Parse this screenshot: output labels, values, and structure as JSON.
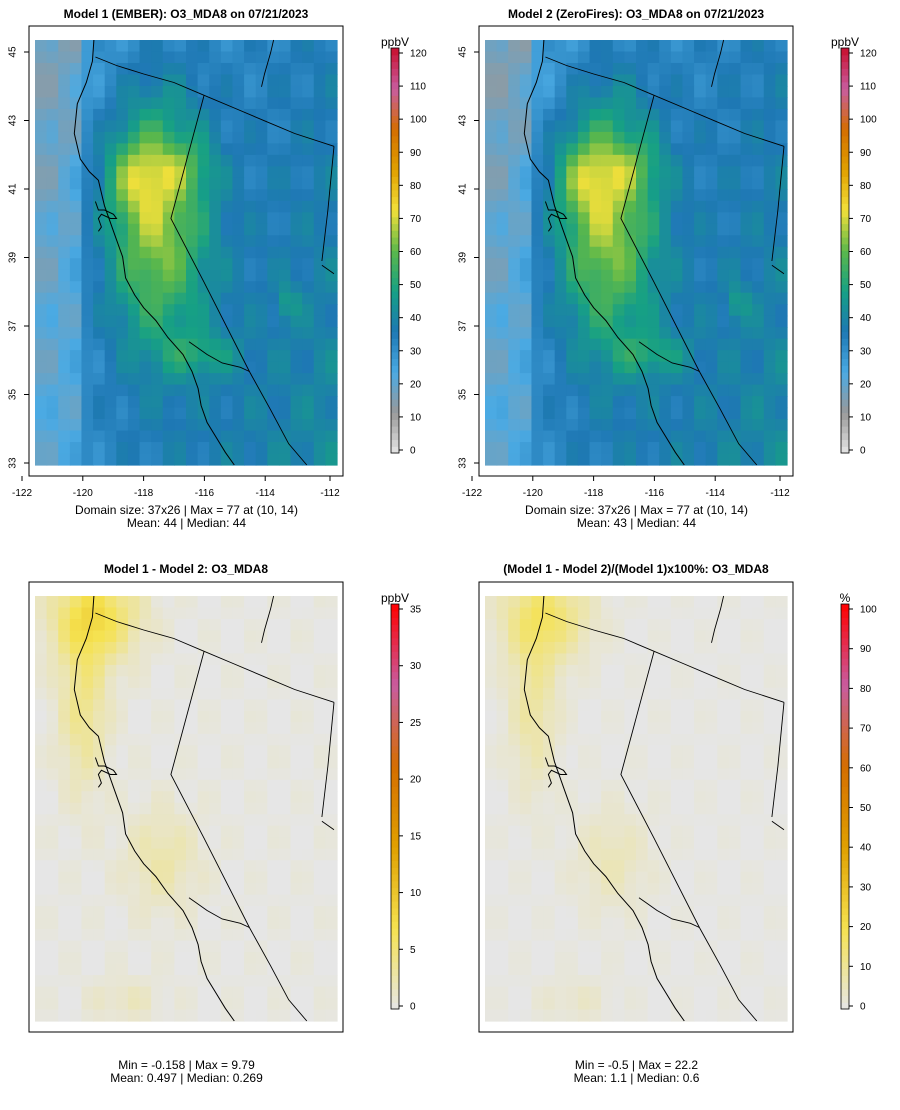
{
  "chart_data": [
    {
      "type": "heatmap",
      "title": "Model 1 (EMBER): O3_MDA8 on 07/21/2023",
      "x_ticks": [
        "-122",
        "-120",
        "-118",
        "-116",
        "-114",
        "-112"
      ],
      "y_ticks": [
        "33",
        "35",
        "37",
        "39",
        "41",
        "43",
        "45"
      ],
      "xlim": [
        -122,
        -112
      ],
      "ylim": [
        33,
        45
      ],
      "colorbar": {
        "unit": "ppbV",
        "min": 0,
        "max": 120,
        "ticks": [
          "0",
          "10",
          "20",
          "30",
          "40",
          "50",
          "60",
          "70",
          "80",
          "90",
          "100",
          "110",
          "120"
        ]
      },
      "stats": [
        "Domain size: 37x26 | Max = 77 at (10, 14)",
        "Mean: 44 |  Median: 44"
      ],
      "field": {
        "mean": 44,
        "max": 77
      }
    },
    {
      "type": "heatmap",
      "title": "Model 2 (ZeroFires): O3_MDA8 on 07/21/2023",
      "x_ticks": [
        "-122",
        "-120",
        "-118",
        "-116",
        "-114",
        "-112"
      ],
      "y_ticks": [
        "33",
        "35",
        "37",
        "39",
        "41",
        "43",
        "45"
      ],
      "xlim": [
        -122,
        -112
      ],
      "ylim": [
        33,
        45
      ],
      "colorbar": {
        "unit": "ppbV",
        "min": 0,
        "max": 120,
        "ticks": [
          "0",
          "10",
          "20",
          "30",
          "40",
          "50",
          "60",
          "70",
          "80",
          "90",
          "100",
          "110",
          "120"
        ]
      },
      "stats": [
        "Domain size: 37x26 | Max = 77 at (10, 14)",
        "Mean: 43 |  Median: 44"
      ],
      "field": {
        "mean": 43,
        "max": 77
      }
    },
    {
      "type": "heatmap",
      "title": "Model 1 - Model 2: O3_MDA8",
      "x_ticks": [],
      "y_ticks": [],
      "colorbar": {
        "unit": "ppbV",
        "min": 0,
        "max": 35,
        "ticks": [
          "0",
          "5",
          "10",
          "15",
          "20",
          "25",
          "30",
          "35"
        ]
      },
      "stats": [
        "Min = -0.158 | Max = 9.79",
        "Mean: 0.497 |  Median: 0.269"
      ],
      "field": {
        "min": -0.158,
        "max": 9.79,
        "mean": 0.497
      }
    },
    {
      "type": "heatmap",
      "title": "(Model 1 - Model 2)/(Model 1)x100%: O3_MDA8",
      "x_ticks": [],
      "y_ticks": [],
      "colorbar": {
        "unit": "%",
        "min": 0,
        "max": 100,
        "ticks": [
          "0",
          "10",
          "20",
          "30",
          "40",
          "50",
          "60",
          "70",
          "80",
          "90",
          "100"
        ]
      },
      "stats": [
        "Min = -0.5 | Max = 22.2",
        "Mean: 1.1 |  Median: 0.6"
      ],
      "field": {
        "min": -0.5,
        "max": 22.2,
        "mean": 1.1
      }
    }
  ],
  "colors": {
    "ozone_stops": [
      "#e6e6e6",
      "#999999",
      "#4baae3",
      "#1e78b4",
      "#16a085",
      "#5cb84a",
      "#f2e03a",
      "#e0a000",
      "#d46e00",
      "#c85ca0",
      "#c8102e"
    ],
    "diff_stops": [
      "#e6e6e6",
      "#f5e250",
      "#e0a000",
      "#d46e00",
      "#c85ca0",
      "#ff0000"
    ],
    "frame": "#000000",
    "background_fill": "#e6e6e6"
  }
}
